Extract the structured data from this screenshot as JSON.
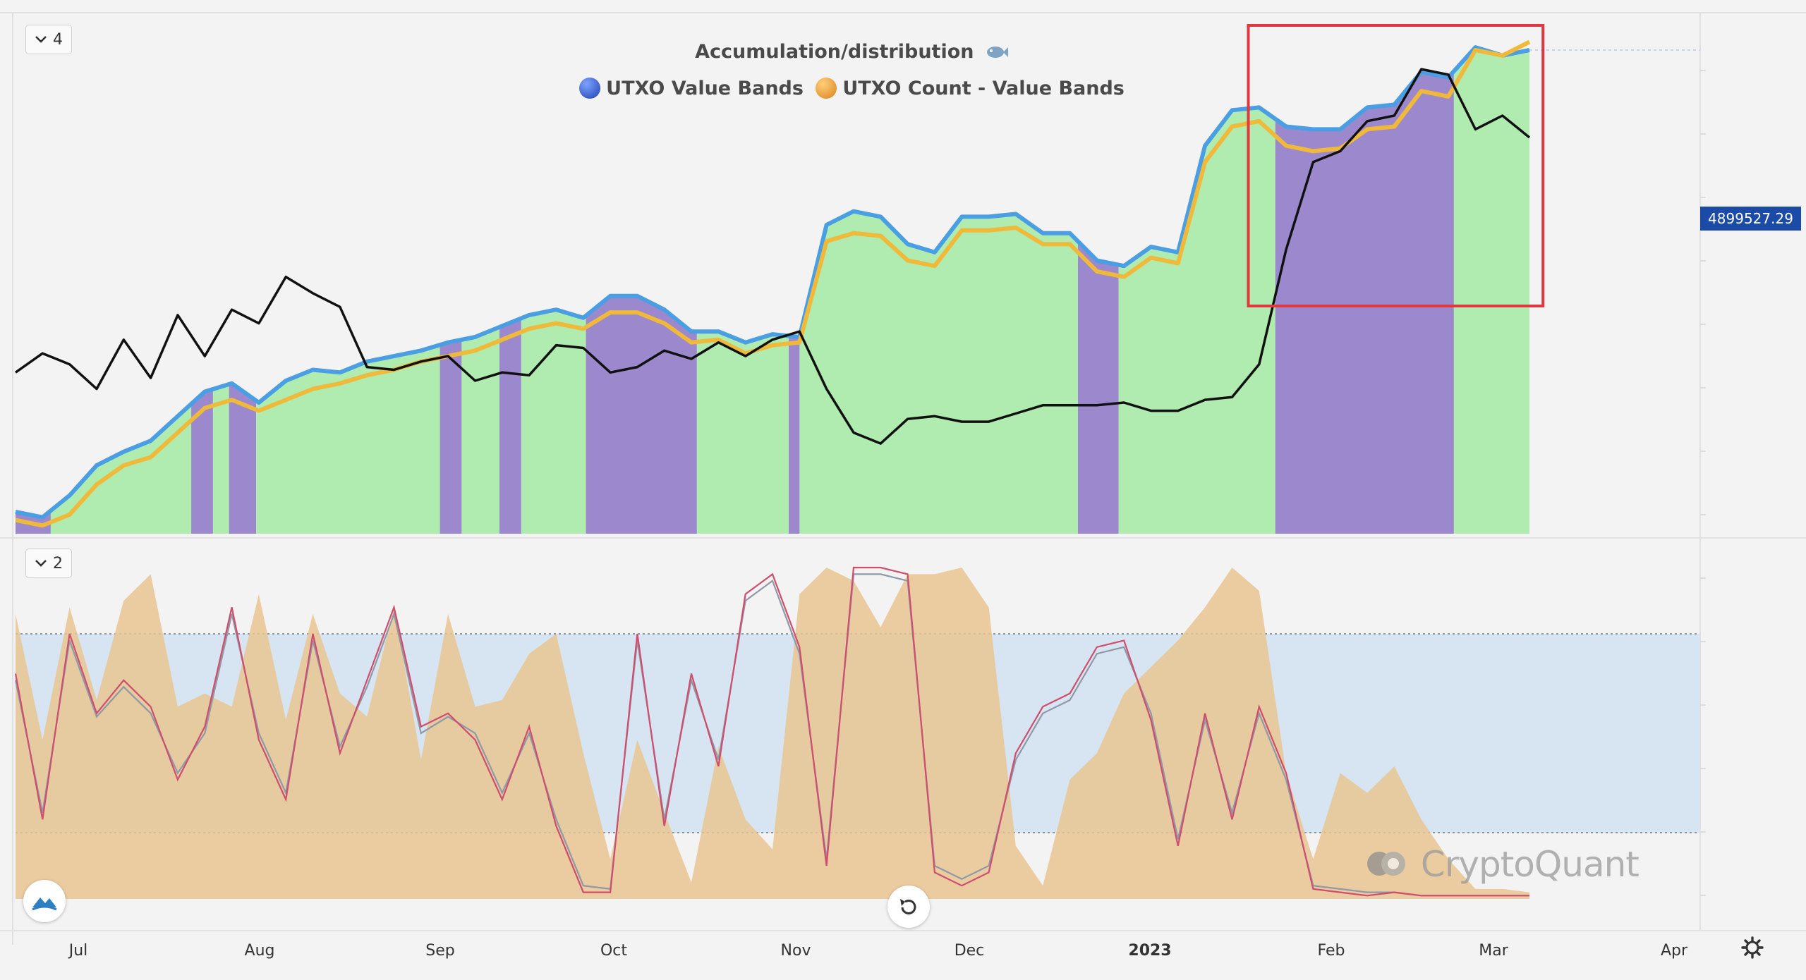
{
  "chart_data": [
    {
      "type": "area",
      "title": "Accumulation/distribution",
      "pane_count_label": "4",
      "legend": [
        "UTXO Value Bands",
        "UTXO Count - Value Bands"
      ],
      "colors": {
        "value_bands": "#4a9ee3",
        "count_bands": "#f0b93a",
        "price": "#111111",
        "accumulation": "#b0ebb0",
        "distribution": "#9c88cc",
        "highlight": "#e0383e"
      },
      "last_value_label": "4899527.29",
      "series": [
        {
          "name": "UTXO Value Bands",
          "values": [
            38,
            36,
            44,
            55,
            60,
            64,
            73,
            82,
            85,
            78,
            86,
            90,
            89,
            93,
            95,
            97,
            100,
            102,
            106,
            110,
            112,
            109,
            117,
            117,
            112,
            104,
            104,
            100,
            103,
            102,
            143,
            148,
            146,
            136,
            133,
            146,
            146,
            147,
            140,
            140,
            130,
            128,
            135,
            133,
            172,
            185,
            186,
            179,
            178,
            178,
            186,
            187,
            199,
            197,
            208,
            205,
            207
          ]
        },
        {
          "name": "UTXO Count - Value Bands",
          "values": [
            35,
            33,
            37,
            48,
            55,
            58,
            67,
            76,
            79,
            75,
            79,
            83,
            85,
            88,
            90,
            93,
            95,
            97,
            101,
            105,
            107,
            105,
            111,
            111,
            107,
            100,
            101,
            96,
            99,
            100,
            137,
            140,
            139,
            130,
            128,
            141,
            141,
            142,
            136,
            136,
            126,
            124,
            131,
            129,
            166,
            179,
            181,
            172,
            170,
            171,
            178,
            179,
            192,
            190,
            207,
            205,
            210
          ]
        },
        {
          "name": "Price",
          "values": [
            89,
            96,
            92,
            83,
            101,
            87,
            110,
            95,
            112,
            107,
            124,
            118,
            113,
            91,
            90,
            93,
            95,
            86,
            89,
            88,
            99,
            98,
            89,
            91,
            97,
            94,
            100,
            95,
            101,
            104,
            83,
            67,
            63,
            72,
            73,
            71,
            71,
            74,
            77,
            77,
            77,
            78,
            75,
            75,
            79,
            80,
            92,
            134,
            166,
            170,
            181,
            183,
            200,
            198,
            178,
            183,
            175
          ]
        }
      ],
      "x_range": [
        0,
        56
      ],
      "y_range": [
        30,
        215
      ],
      "highlight_range": [
        45.6,
        56.5
      ],
      "distribution_ranges": [
        [
          0.0,
          1.3
        ],
        [
          6.5,
          7.3
        ],
        [
          7.9,
          8.9
        ],
        [
          15.7,
          16.5
        ],
        [
          17.9,
          18.7
        ],
        [
          21.1,
          25.2
        ],
        [
          28.6,
          29.0
        ],
        [
          39.3,
          40.8
        ],
        [
          46.6,
          53.2
        ]
      ]
    },
    {
      "type": "area",
      "pane_count_label": "2",
      "band": [
        20,
        80
      ],
      "y_range": [
        0,
        100
      ],
      "x_range": [
        0,
        56
      ],
      "colors": {
        "oscillator": "#e9c38d",
        "fast_line": "#cf4d6d",
        "slow_line": "#8f9aa6",
        "band_fill": "#d6e5f1"
      },
      "series": [
        {
          "name": "Oscillator",
          "values": [
            86,
            48,
            88,
            60,
            90,
            98,
            58,
            62,
            58,
            92,
            54,
            86,
            62,
            55,
            88,
            42,
            86,
            58,
            60,
            74,
            80,
            44,
            12,
            48,
            26,
            5,
            46,
            24,
            15,
            92,
            100,
            96,
            82,
            98,
            98,
            100,
            88,
            16,
            4,
            36,
            44,
            62,
            70,
            78,
            88,
            100,
            93,
            38,
            12,
            38,
            32,
            40,
            24,
            12,
            3,
            3,
            2
          ]
        },
        {
          "name": "Fast line",
          "values": [
            68,
            24,
            80,
            56,
            66,
            58,
            36,
            52,
            88,
            48,
            30,
            80,
            44,
            66,
            88,
            52,
            56,
            48,
            30,
            52,
            22,
            2,
            2,
            80,
            22,
            68,
            40,
            92,
            98,
            76,
            10,
            100,
            100,
            98,
            8,
            4,
            8,
            44,
            58,
            62,
            76,
            78,
            54,
            16,
            56,
            24,
            58,
            38,
            3,
            2,
            1,
            2,
            1,
            1,
            1,
            1,
            1
          ]
        },
        {
          "name": "Slow line",
          "values": [
            66,
            26,
            78,
            55,
            64,
            56,
            38,
            50,
            86,
            50,
            32,
            78,
            46,
            64,
            86,
            50,
            55,
            50,
            32,
            50,
            24,
            4,
            3,
            78,
            24,
            66,
            42,
            90,
            96,
            74,
            12,
            98,
            98,
            96,
            10,
            6,
            10,
            42,
            56,
            60,
            74,
            76,
            56,
            18,
            54,
            26,
            56,
            36,
            4,
            3,
            2,
            2,
            1,
            1,
            1,
            1,
            1
          ]
        }
      ]
    }
  ],
  "x_axis": {
    "labels": [
      "Jul",
      "Aug",
      "Sep",
      "Oct",
      "Nov",
      "Dec",
      "2023",
      "Feb",
      "Mar",
      "Apr"
    ]
  },
  "watermark": "CryptoQuant",
  "icons": {
    "chevron": "chevron-down-icon",
    "reset": "reset-icon",
    "settings": "gear-icon",
    "logo": "logo-icon"
  }
}
